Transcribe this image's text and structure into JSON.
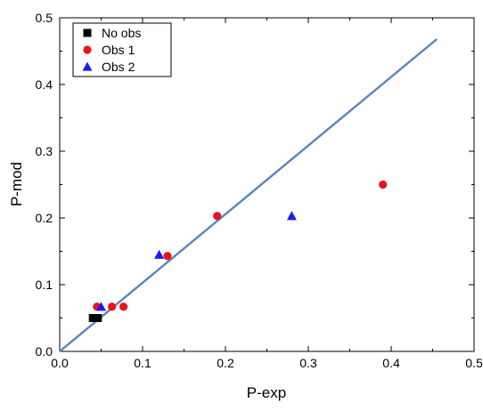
{
  "chart_data": {
    "type": "scatter",
    "xlabel": "P-exp",
    "ylabel": "P-mod",
    "xlim": [
      0,
      0.5
    ],
    "ylim": [
      0,
      0.5
    ],
    "x_ticks": [
      "0.0",
      "0.1",
      "0.2",
      "0.3",
      "0.4",
      "0.5"
    ],
    "y_ticks": [
      "0.0",
      "0.1",
      "0.2",
      "0.3",
      "0.4",
      "0.5"
    ],
    "x_tick_values": [
      0,
      0.1,
      0.2,
      0.3,
      0.4,
      0.5
    ],
    "y_tick_values": [
      0,
      0.1,
      0.2,
      0.3,
      0.4,
      0.5
    ],
    "grid": false,
    "legend_position": "top-left",
    "series": [
      {
        "name": "No obs",
        "marker": "square",
        "color": "#000000",
        "points": [
          [
            0.04,
            0.05
          ],
          [
            0.046,
            0.05
          ]
        ]
      },
      {
        "name": "Obs 1",
        "marker": "circle",
        "color": "#e8141b",
        "points": [
          [
            0.045,
            0.067
          ],
          [
            0.063,
            0.067
          ],
          [
            0.077,
            0.067
          ],
          [
            0.13,
            0.143
          ],
          [
            0.19,
            0.203
          ],
          [
            0.39,
            0.25
          ]
        ]
      },
      {
        "name": "Obs 2",
        "marker": "triangle",
        "color": "#1a1aff",
        "points": [
          [
            0.05,
            0.067
          ],
          [
            0.12,
            0.145
          ],
          [
            0.28,
            0.203
          ]
        ]
      }
    ],
    "reference_line": {
      "color": "#5b84b8",
      "points": [
        [
          0,
          0
        ],
        [
          0.455,
          0.468
        ]
      ]
    }
  }
}
